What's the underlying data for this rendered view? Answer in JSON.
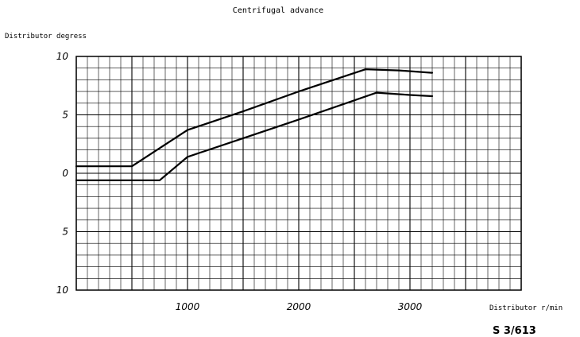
{
  "chart_data": {
    "type": "line",
    "title": "Centrifugal advance",
    "ylabel": "Distributor degress",
    "xlabel": "Distributor r/min",
    "xlim": [
      0,
      4000
    ],
    "ylim": [
      -10,
      10
    ],
    "grid": true,
    "x_tick_labels": [
      "1000",
      "2000",
      "3000"
    ],
    "x_tick_values": [
      1000,
      2000,
      3000
    ],
    "y_tick_labels": [
      "10",
      "5",
      "0",
      "5",
      "10"
    ],
    "y_tick_values": [
      10,
      5,
      0,
      -5,
      -10
    ],
    "series": [
      {
        "x": [
          0,
          300,
          500,
          1000,
          1500,
          2000,
          2600,
          2900,
          3200
        ],
        "y": [
          0.6,
          0.6,
          0.6,
          3.7,
          5.3,
          7.0,
          8.9,
          8.8,
          8.6
        ]
      },
      {
        "x": [
          0,
          300,
          750,
          1000,
          1500,
          2000,
          2700,
          3000,
          3200
        ],
        "y": [
          -0.6,
          -0.6,
          -0.6,
          1.4,
          3.0,
          4.6,
          6.9,
          6.7,
          6.6
        ]
      }
    ]
  },
  "figure_ref": "S 3/613"
}
